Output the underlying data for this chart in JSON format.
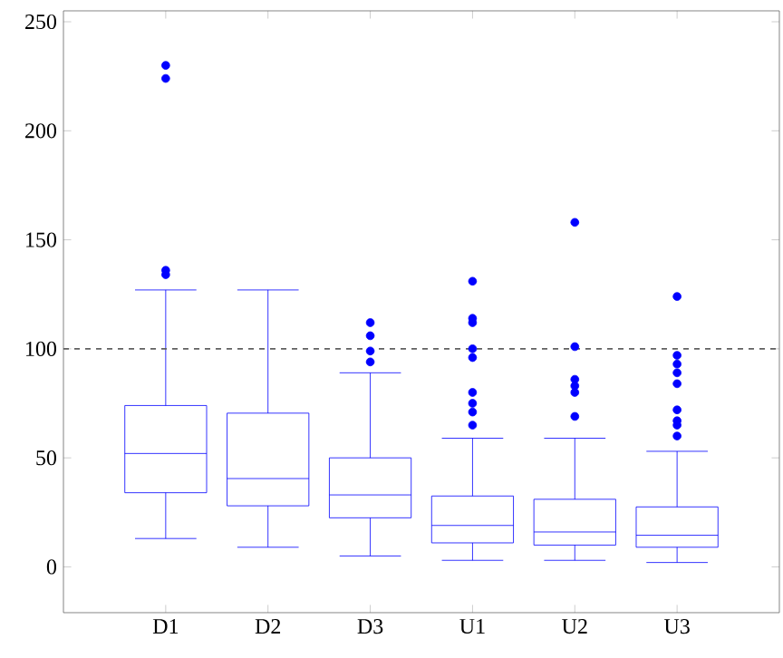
{
  "chart_data": {
    "type": "box",
    "categories": [
      "D1",
      "D2",
      "D3",
      "U1",
      "U2",
      "U3"
    ],
    "series": [
      {
        "color": "#0000ff",
        "boxes": [
          {
            "low": 13,
            "q1": 34,
            "median": 52,
            "q3": 74,
            "high": 127,
            "outliers": [
              230,
              224,
              136,
              134
            ]
          },
          {
            "low": 9,
            "q1": 28,
            "median": 40.5,
            "q3": 70.5,
            "high": 127
          },
          {
            "low": 5,
            "q1": 22.5,
            "median": 33,
            "q3": 50,
            "high": 89,
            "outliers": [
              112,
              106,
              99,
              94
            ]
          },
          {
            "low": 3,
            "q1": 11,
            "median": 19,
            "q3": 32.5,
            "high": 59,
            "outliers": [
              131,
              114,
              112,
              100,
              96,
              80,
              75,
              71,
              65
            ]
          },
          {
            "low": 3,
            "q1": 10,
            "median": 16,
            "q3": 31,
            "high": 59,
            "outliers": [
              158,
              101,
              86,
              83,
              80,
              69
            ]
          },
          {
            "low": 2,
            "q1": 9,
            "median": 14.5,
            "q3": 27.5,
            "high": 53,
            "outliers": [
              124,
              97,
              93,
              89,
              84,
              72,
              67,
              65,
              60
            ]
          }
        ]
      }
    ],
    "ylim": [
      -21,
      255
    ],
    "yticks": [
      0,
      50,
      100,
      150,
      200,
      250
    ],
    "ref_lines": [
      {
        "axis": "y",
        "value": 100,
        "color": "#606060",
        "line_style": "dashed"
      }
    ]
  }
}
